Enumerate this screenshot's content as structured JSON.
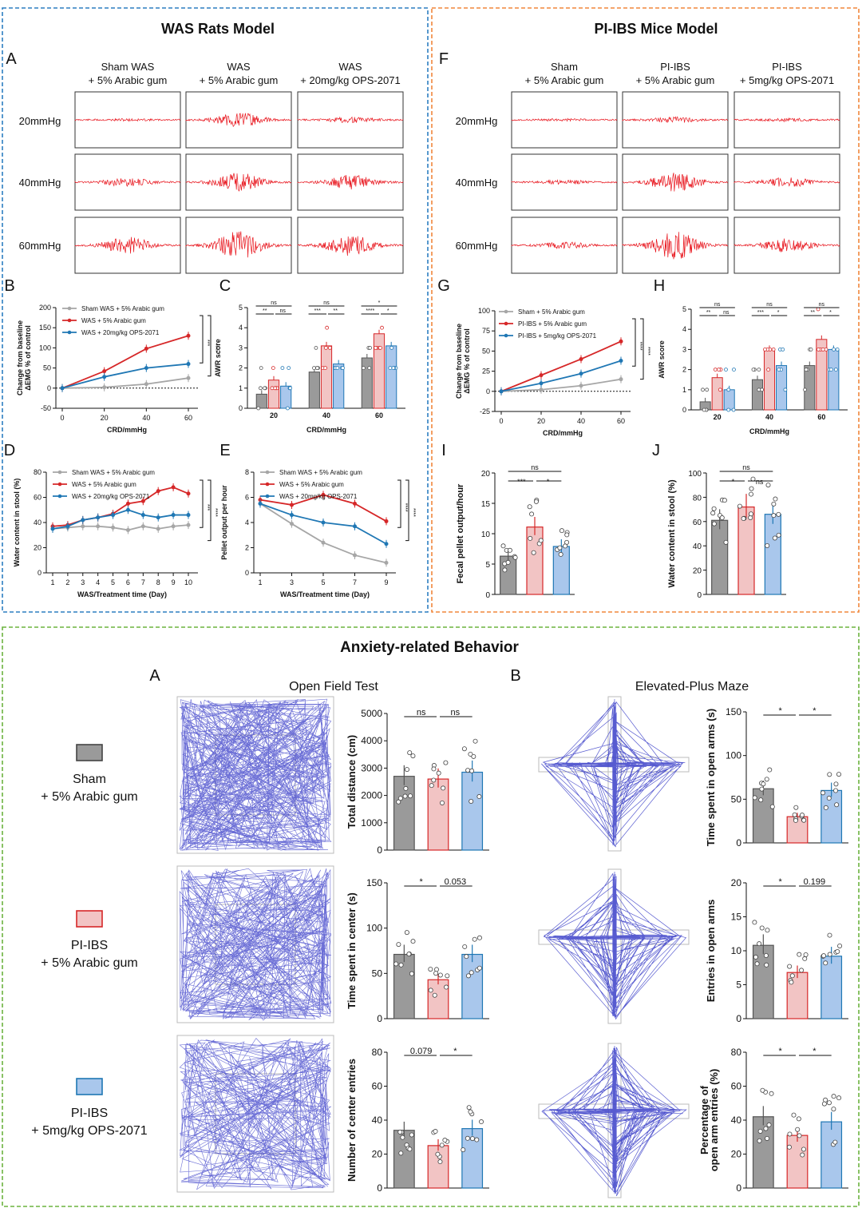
{
  "colors": {
    "sham": "#a6a6a6",
    "disease": "#d62728",
    "drug": "#1f77b4",
    "sham_fill": "#9a9a9a",
    "disease_fill": "#f2c4c4",
    "drug_fill": "#a9c7ec",
    "trace": "#e8141c",
    "track": "#3a3ec8",
    "box_blue": "#2d7fc1",
    "box_orange": "#f0873c",
    "box_green": "#6cb33f"
  },
  "panels": {
    "was": {
      "title": "WAS Rats Model",
      "letter_A": "A",
      "letter_B": "B",
      "letter_C": "C",
      "letter_D": "D",
      "letter_E": "E",
      "groups": [
        {
          "l1": "Sham WAS",
          "l2": "+ 5% Arabic gum"
        },
        {
          "l1": "WAS",
          "l2": "+ 5% Arabic gum"
        },
        {
          "l1": "WAS",
          "l2": "+ 20mg/kg OPS-2071"
        }
      ],
      "pressures": [
        "20mmHg",
        "40mmHg",
        "60mmHg"
      ]
    },
    "ibs": {
      "title": "PI-IBS Mice Model",
      "letter_F": "F",
      "letter_G": "G",
      "letter_H": "H",
      "letter_I": "I",
      "letter_J": "J",
      "groups": [
        {
          "l1": "Sham",
          "l2": "+ 5% Arabic gum"
        },
        {
          "l1": "PI-IBS",
          "l2": "+ 5% Arabic gum"
        },
        {
          "l1": "PI-IBS",
          "l2": "+ 5mg/kg OPS-2071"
        }
      ],
      "pressures": [
        "20mmHg",
        "40mmHg",
        "60mmHg"
      ]
    },
    "anx": {
      "title": "Anxiety-related Behavior",
      "letter_A": "A",
      "letter_B": "B",
      "oft": "Open Field Test",
      "epm": "Elevated-Plus Maze",
      "groups": [
        {
          "l1": "Sham",
          "l2": "+ 5% Arabic gum"
        },
        {
          "l1": "PI-IBS",
          "l2": "+ 5% Arabic gum"
        },
        {
          "l1": "PI-IBS",
          "l2": "+ 5mg/kg OPS-2071"
        }
      ]
    }
  },
  "chart_data": [
    {
      "id": "B",
      "type": "line",
      "xlabel": "CRD/mmHg",
      "ylabel": "Change from baseline ΔEMG % of control",
      "x": [
        0,
        20,
        40,
        60
      ],
      "ylim": [
        -50,
        200
      ],
      "yticks": [
        -50,
        0,
        50,
        100,
        150,
        200
      ],
      "series": [
        {
          "name": "Sham WAS + 5% Arabic gum",
          "values": [
            0,
            2,
            10,
            25
          ]
        },
        {
          "name": "WAS + 5% Arabic gum",
          "values": [
            0,
            42,
            98,
            130
          ]
        },
        {
          "name": "WAS + 20mg/kg OPS-2071",
          "values": [
            0,
            28,
            50,
            60
          ]
        }
      ],
      "sig": [
        "****",
        "***",
        "****"
      ]
    },
    {
      "id": "C",
      "type": "bar",
      "xlabel": "CRD/mmHg",
      "ylabel": "AWR score",
      "categories": [
        "20",
        "40",
        "60"
      ],
      "ylim": [
        0,
        5
      ],
      "yticks": [
        0,
        1,
        2,
        3,
        4,
        5
      ],
      "series": [
        {
          "name": "Sham",
          "values": [
            0.7,
            1.8,
            2.5
          ]
        },
        {
          "name": "Disease",
          "values": [
            1.4,
            3.1,
            3.7
          ]
        },
        {
          "name": "Drug",
          "values": [
            1.1,
            2.2,
            3.1
          ]
        }
      ],
      "sig": [
        [
          "ns",
          "**",
          "ns"
        ],
        [
          "ns",
          "***",
          "**"
        ],
        [
          "*",
          "****",
          "*"
        ]
      ]
    },
    {
      "id": "D",
      "type": "line",
      "xlabel": "WAS/Treatment time (Day)",
      "ylabel": "Water content in stool (%)",
      "x": [
        1,
        2,
        3,
        4,
        5,
        6,
        7,
        8,
        9,
        10
      ],
      "ylim": [
        0,
        80
      ],
      "yticks": [
        0,
        20,
        40,
        60,
        80
      ],
      "series": [
        {
          "name": "Sham WAS + 5% Arabic gum",
          "values": [
            35,
            36,
            37,
            37,
            36,
            34,
            37,
            35,
            37,
            38
          ]
        },
        {
          "name": "WAS + 5% Arabic gum",
          "values": [
            37,
            38,
            42,
            44,
            47,
            55,
            57,
            65,
            68,
            63
          ]
        },
        {
          "name": "WAS + 20mg/kg OPS-2071",
          "values": [
            35,
            37,
            42,
            44,
            46,
            50,
            46,
            44,
            46,
            46
          ]
        }
      ],
      "sig": [
        "****",
        "***",
        "****"
      ]
    },
    {
      "id": "E",
      "type": "line",
      "xlabel": "WAS/Treatment time (Day)",
      "ylabel": "Pellet output per hour",
      "x": [
        1,
        3,
        5,
        7,
        9
      ],
      "ylim": [
        0,
        8
      ],
      "yticks": [
        0,
        2,
        4,
        6,
        8
      ],
      "series": [
        {
          "name": "Sham WAS + 5% Arabic gum",
          "values": [
            5.5,
            3.9,
            2.4,
            1.4,
            0.8
          ]
        },
        {
          "name": "WAS + 5% Arabic gum",
          "values": [
            5.8,
            5.4,
            6.2,
            5.5,
            4.1
          ]
        },
        {
          "name": "WAS + 20mg/kg OPS-2071",
          "values": [
            5.5,
            4.6,
            4.0,
            3.7,
            2.3
          ]
        }
      ],
      "sig": [
        "***",
        "****"
      ]
    },
    {
      "id": "G",
      "type": "line",
      "xlabel": "CRD/mmHg",
      "ylabel": "Change from baseline ΔEMG % of control",
      "x": [
        0,
        20,
        40,
        60
      ],
      "ylim": [
        -25,
        100
      ],
      "yticks": [
        -25,
        0,
        25,
        50,
        75,
        100
      ],
      "series": [
        {
          "name": "Sham + 5% Arabic gum",
          "values": [
            0,
            2,
            7,
            15
          ]
        },
        {
          "name": "PI-IBS + 5% Arabic gum",
          "values": [
            0,
            20,
            40,
            62
          ]
        },
        {
          "name": "PI-IBS + 5mg/kg OPS-2071",
          "values": [
            0,
            10,
            22,
            38
          ]
        }
      ],
      "sig": [
        "****",
        "****",
        "**",
        "***",
        "****"
      ]
    },
    {
      "id": "H",
      "type": "bar",
      "xlabel": "CRD/mmHg",
      "ylabel": "AWR score",
      "categories": [
        "20",
        "40",
        "60"
      ],
      "ylim": [
        0,
        5
      ],
      "yticks": [
        0,
        1,
        2,
        3,
        4,
        5
      ],
      "series": [
        {
          "name": "Sham",
          "values": [
            0.4,
            1.5,
            2.2
          ]
        },
        {
          "name": "Disease",
          "values": [
            1.6,
            3.0,
            3.5
          ]
        },
        {
          "name": "Drug",
          "values": [
            1.0,
            2.2,
            3.0
          ]
        }
      ],
      "sig": [
        [
          "ns",
          "**",
          "ns"
        ],
        [
          "ns",
          "***",
          "*"
        ],
        [
          "ns",
          "**",
          "*"
        ]
      ]
    },
    {
      "id": "I",
      "type": "bar",
      "ylabel": "Fecal pellet output/hour",
      "ylim": [
        0,
        20
      ],
      "yticks": [
        0,
        5,
        10,
        15,
        20
      ],
      "values": [
        6.3,
        11.1,
        7.9
      ],
      "sig": [
        "ns",
        "***",
        "*"
      ]
    },
    {
      "id": "J",
      "type": "bar",
      "ylabel": "Water content in stool (%)",
      "ylim": [
        0,
        100
      ],
      "yticks": [
        0,
        20,
        40,
        60,
        80,
        100
      ],
      "values": [
        61,
        72,
        66
      ],
      "sig": [
        "ns",
        "*",
        "ns"
      ]
    },
    {
      "id": "OFT1",
      "type": "bar",
      "ylabel": "Total distance (cm)",
      "ylim": [
        0,
        5000
      ],
      "yticks": [
        0,
        1000,
        2000,
        3000,
        4000,
        5000
      ],
      "values": [
        2700,
        2600,
        2850
      ],
      "sig": [
        "ns",
        "ns"
      ]
    },
    {
      "id": "OFT2",
      "type": "bar",
      "ylabel": "Time spent in center (s)",
      "ylim": [
        0,
        150
      ],
      "yticks": [
        0,
        50,
        100,
        150
      ],
      "values": [
        71,
        43,
        71
      ],
      "sig": [
        "*",
        "0.053"
      ]
    },
    {
      "id": "OFT3",
      "type": "bar",
      "ylabel": "Number of center entries",
      "ylim": [
        0,
        80
      ],
      "yticks": [
        0,
        20,
        40,
        60,
        80
      ],
      "values": [
        34,
        25,
        35
      ],
      "sig": [
        "0.079",
        "*"
      ]
    },
    {
      "id": "EPM1",
      "type": "bar",
      "ylabel": "Time spent in open arms (s)",
      "ylim": [
        0,
        150
      ],
      "yticks": [
        0,
        50,
        100,
        150
      ],
      "values": [
        62,
        30,
        60
      ],
      "sig": [
        "*",
        "*"
      ]
    },
    {
      "id": "EPM2",
      "type": "bar",
      "ylabel": "Entries in open arms",
      "ylim": [
        0,
        20
      ],
      "yticks": [
        0,
        5,
        10,
        15,
        20
      ],
      "values": [
        10.8,
        6.8,
        9.2
      ],
      "sig": [
        "*",
        "0.199"
      ]
    },
    {
      "id": "EPM3",
      "type": "bar",
      "ylabel": "Percentage of open arm entries (%)",
      "ylim": [
        0,
        80
      ],
      "yticks": [
        0,
        20,
        40,
        60,
        80
      ],
      "values": [
        42,
        31,
        39
      ],
      "sig": [
        "*",
        "*"
      ]
    }
  ]
}
